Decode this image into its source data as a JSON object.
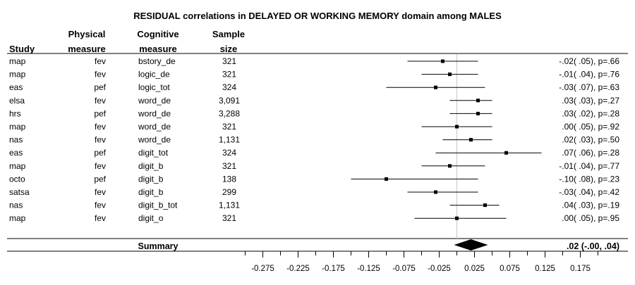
{
  "chart_data": {
    "type": "forest",
    "title": "RESIDUAL correlations in DELAYED OR WORKING MEMORY domain among MALES",
    "columns": {
      "study": "Study",
      "physical_line1": "Physical",
      "physical_line2": "measure",
      "cognitive_line1": "Cognitive",
      "cognitive_line2": "measure",
      "sample_line1": "Sample",
      "sample_line2": "size"
    },
    "rows": [
      {
        "study": "map",
        "physical": "fev",
        "cognitive": "bstory_de",
        "n": "321",
        "est": -0.02,
        "lo": -0.07,
        "hi": 0.03,
        "label": "-.02( .05), p=.66"
      },
      {
        "study": "map",
        "physical": "fev",
        "cognitive": "logic_de",
        "n": "321",
        "est": -0.01,
        "lo": -0.05,
        "hi": 0.03,
        "label": "-.01( .04), p=.76"
      },
      {
        "study": "eas",
        "physical": "pef",
        "cognitive": "logic_tot",
        "n": "324",
        "est": -0.03,
        "lo": -0.1,
        "hi": 0.04,
        "label": "-.03( .07), p=.63"
      },
      {
        "study": "elsa",
        "physical": "fev",
        "cognitive": "word_de",
        "n": "3,091",
        "est": 0.03,
        "lo": -0.01,
        "hi": 0.05,
        "label": ".03( .03), p=.27"
      },
      {
        "study": "hrs",
        "physical": "pef",
        "cognitive": "word_de",
        "n": "3,288",
        "est": 0.03,
        "lo": -0.01,
        "hi": 0.05,
        "label": ".03( .02), p=.28"
      },
      {
        "study": "map",
        "physical": "fev",
        "cognitive": "word_de",
        "n": "321",
        "est": 0.0,
        "lo": -0.05,
        "hi": 0.05,
        "label": ".00( .05), p=.92"
      },
      {
        "study": "nas",
        "physical": "fev",
        "cognitive": "word_de",
        "n": "1,131",
        "est": 0.02,
        "lo": -0.02,
        "hi": 0.05,
        "label": ".02( .03), p=.50"
      },
      {
        "study": "eas",
        "physical": "pef",
        "cognitive": "digit_tot",
        "n": "324",
        "est": 0.07,
        "lo": -0.03,
        "hi": 0.12,
        "label": ".07( .06), p=.28"
      },
      {
        "study": "map",
        "physical": "fev",
        "cognitive": "digit_b",
        "n": "321",
        "est": -0.01,
        "lo": -0.05,
        "hi": 0.04,
        "label": "-.01( .04), p=.77"
      },
      {
        "study": "octo",
        "physical": "pef",
        "cognitive": "digit_b",
        "n": "138",
        "est": -0.1,
        "lo": -0.15,
        "hi": 0.03,
        "label": "-.10( .08), p=.23"
      },
      {
        "study": "satsa",
        "physical": "fev",
        "cognitive": "digit_b",
        "n": "299",
        "est": -0.03,
        "lo": -0.07,
        "hi": 0.03,
        "label": "-.03( .04), p=.42"
      },
      {
        "study": "nas",
        "physical": "fev",
        "cognitive": "digit_b_tot",
        "n": "1,131",
        "est": 0.04,
        "lo": -0.01,
        "hi": 0.06,
        "label": ".04( .03), p=.19"
      },
      {
        "study": "map",
        "physical": "fev",
        "cognitive": "digit_o",
        "n": "321",
        "est": 0.0,
        "lo": -0.06,
        "hi": 0.07,
        "label": ".00( .05), p=.95"
      }
    ],
    "summary": {
      "label": "Summary",
      "est": 0.02,
      "lo": -0.0,
      "hi": 0.04,
      "value_label": ".02 (-.00, .04)"
    },
    "xlim": [
      -0.3,
      0.2
    ],
    "x_ticks": [
      -0.275,
      -0.225,
      -0.175,
      -0.125,
      -0.075,
      -0.025,
      0.025,
      0.075,
      0.125,
      0.175
    ],
    "x_tick_labels": [
      "-0.275",
      "-0.225",
      "-0.175",
      "-0.125",
      "-0.075",
      "-0.025",
      "0.025",
      "0.075",
      "0.125",
      "0.175"
    ],
    "reference_line": 0,
    "grid": false,
    "colors": {
      "ink": "#000000",
      "reference": "#c8c8c8",
      "background": "#ffffff"
    }
  }
}
